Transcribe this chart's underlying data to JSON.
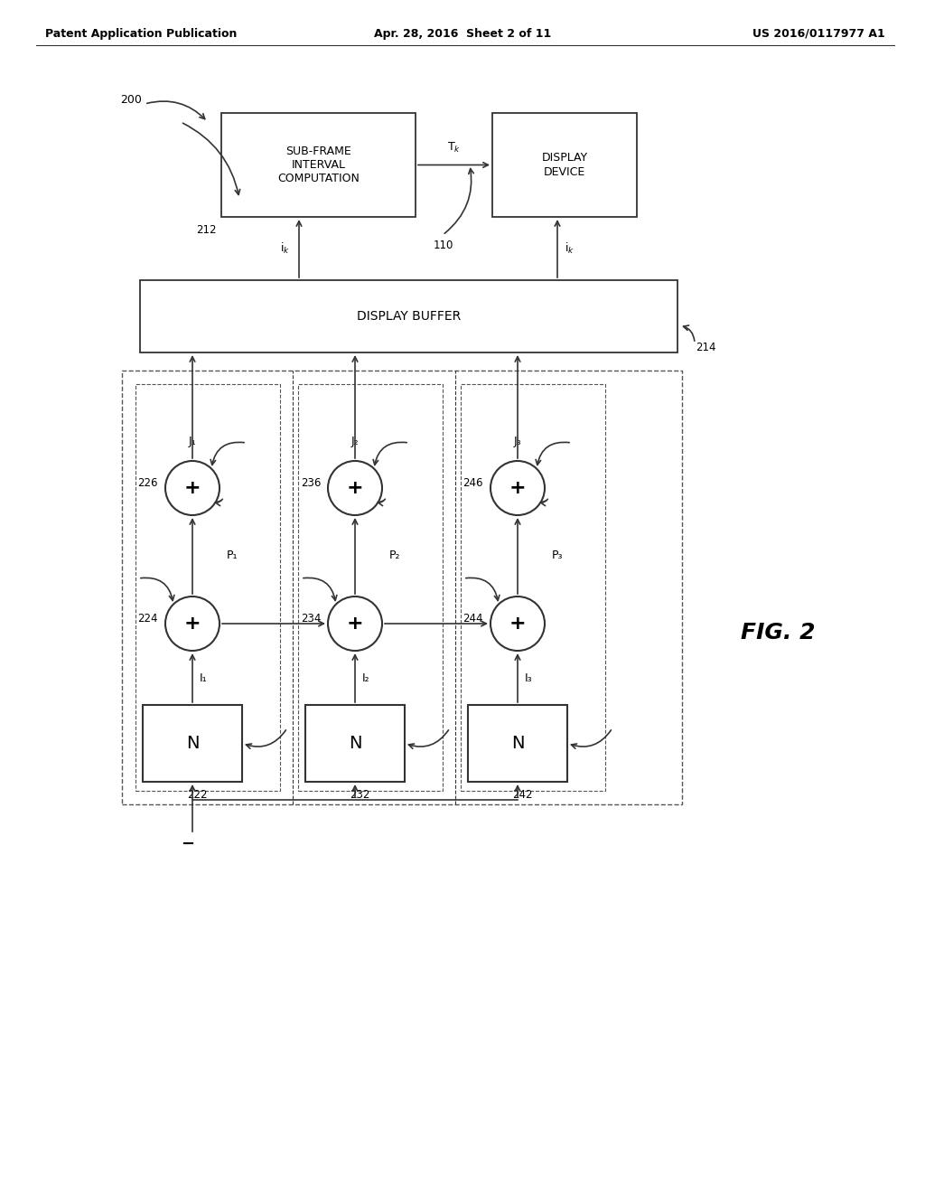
{
  "bg_color": "#ffffff",
  "header_left": "Patent Application Publication",
  "header_mid": "Apr. 28, 2016  Sheet 2 of 11",
  "header_right": "US 2016/0117977 A1",
  "fig_label": "FIG. 2",
  "diagram_label": "200"
}
